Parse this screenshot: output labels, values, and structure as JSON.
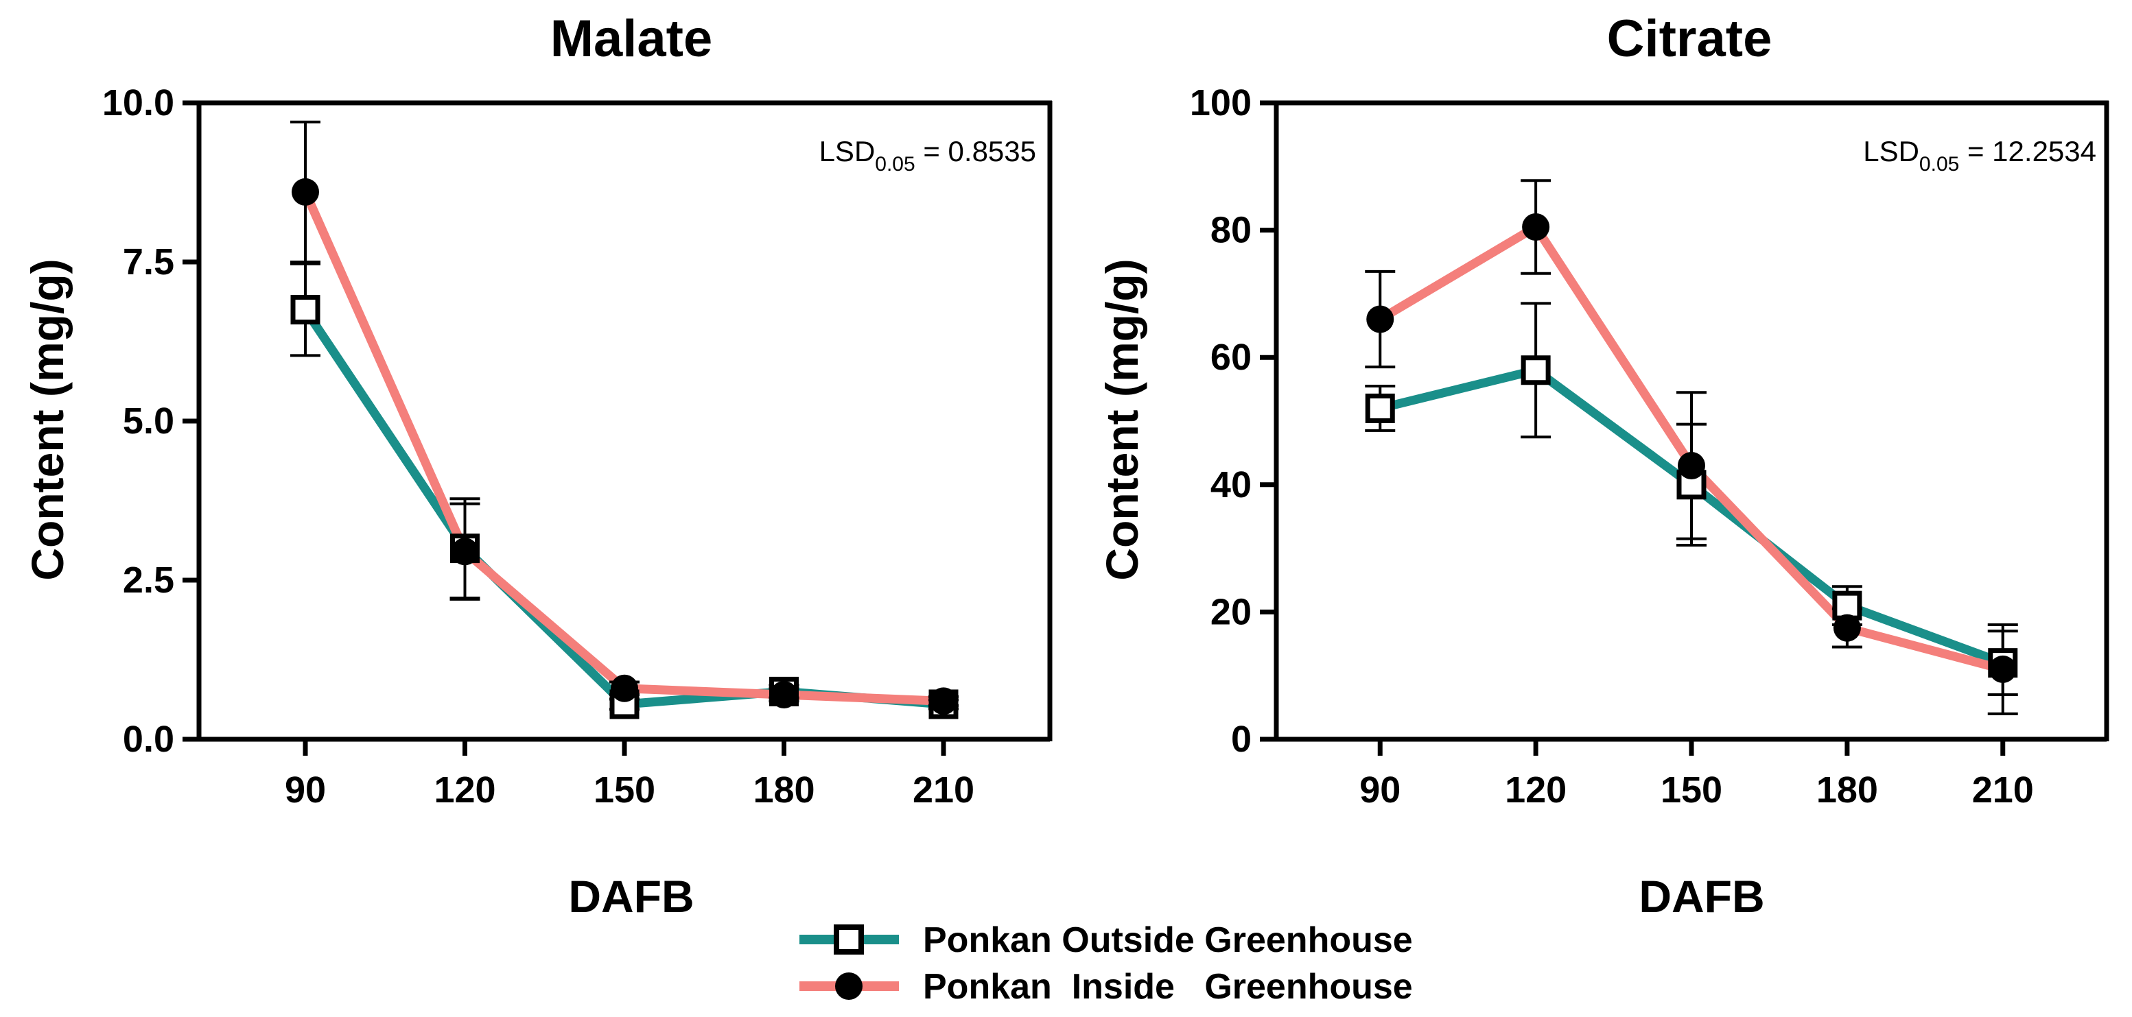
{
  "chart_data": [
    {
      "type": "line",
      "title": "Malate",
      "xlabel": "DAFB",
      "ylabel": "Content (mg/g)",
      "x": [
        90,
        120,
        150,
        180,
        210
      ],
      "xticks": [
        "90",
        "120",
        "150",
        "180",
        "210"
      ],
      "ylim": [
        0,
        10
      ],
      "yticks": [
        "0.0",
        "2.5",
        "5.0",
        "7.5",
        "10.0"
      ],
      "annotation": {
        "base": "LSD",
        "sub": "0.05",
        "rest": " = 0.8535"
      },
      "series": [
        {
          "name": "Ponkan Outside Greenhouse",
          "values": [
            6.75,
            3.0,
            0.55,
            0.75,
            0.55
          ],
          "err": [
            0.72,
            0.78,
            0.08,
            0.1,
            0.07
          ]
        },
        {
          "name": "Ponkan Inside Greenhouse",
          "values": [
            8.6,
            2.95,
            0.8,
            0.7,
            0.6
          ],
          "err": [
            1.1,
            0.75,
            0.1,
            0.1,
            0.07
          ]
        }
      ]
    },
    {
      "type": "line",
      "title": "Citrate",
      "xlabel": "DAFB",
      "ylabel": "Content (mg/g)",
      "x": [
        90,
        120,
        150,
        180,
        210
      ],
      "xticks": [
        "90",
        "120",
        "150",
        "180",
        "210"
      ],
      "ylim": [
        0,
        100
      ],
      "yticks": [
        "0",
        "20",
        "40",
        "60",
        "80",
        "100"
      ],
      "annotation": {
        "base": "LSD",
        "sub": "0.05",
        "rest": " = 12.2534"
      },
      "series": [
        {
          "name": "Ponkan Outside Greenhouse",
          "values": [
            52,
            58,
            40,
            21,
            12
          ],
          "err": [
            3.5,
            10.5,
            9.5,
            3.0,
            5.0
          ]
        },
        {
          "name": "Ponkan Inside Greenhouse",
          "values": [
            66,
            80.5,
            43,
            17.5,
            11
          ],
          "err": [
            7.5,
            7.3,
            11.5,
            3.0,
            7.0
          ]
        }
      ]
    }
  ],
  "legend": {
    "items": [
      {
        "label": "Ponkan Outside Greenhouse",
        "marker": "open-square",
        "color": "#1a8f8a"
      },
      {
        "label": "Ponkan  Inside   Greenhouse",
        "marker": "filled-circle",
        "color": "#f47f7b"
      }
    ]
  },
  "colors": {
    "outside": "#1a8f8a",
    "inside": "#f47f7b",
    "marker": "#000000"
  }
}
